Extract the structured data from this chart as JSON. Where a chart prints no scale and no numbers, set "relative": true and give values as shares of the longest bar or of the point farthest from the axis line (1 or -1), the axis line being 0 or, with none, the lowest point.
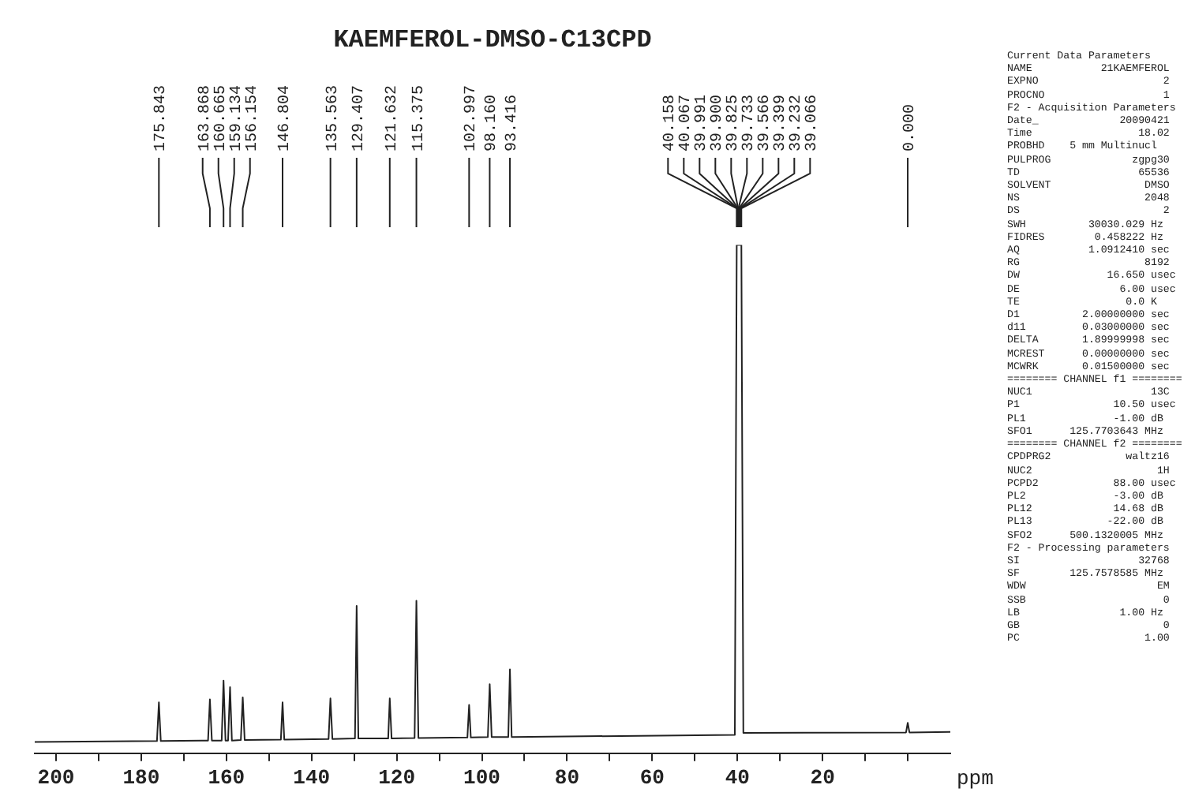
{
  "chart_data": {
    "type": "line",
    "title": "KAEMFEROL-DMSO-C13CPD",
    "xlabel": "ppm",
    "relative": true,
    "color": "#222222",
    "marker": "none",
    "grid": false,
    "legend": false,
    "x": [
      205,
      176.3,
      175.843,
      175.4,
      164.3,
      163.868,
      163.4,
      161.1,
      160.665,
      160.2,
      159.6,
      159.134,
      158.7,
      156.6,
      156.154,
      155.7,
      147.2,
      146.804,
      146.4,
      136.0,
      135.563,
      135.1,
      129.8,
      129.407,
      129.0,
      122.0,
      121.632,
      121.2,
      115.8,
      115.375,
      114.9,
      103.4,
      102.997,
      102.6,
      98.6,
      98.16,
      97.7,
      93.8,
      93.416,
      93.0,
      40.6,
      40.158,
      39.066,
      38.6,
      0.4,
      0,
      -0.4,
      -10
    ],
    "values": [
      0.022,
      0.024,
      0.1,
      0.024,
      0.025,
      0.106,
      0.025,
      0.025,
      0.143,
      0.025,
      0.025,
      0.13,
      0.025,
      0.026,
      0.11,
      0.026,
      0.027,
      0.1,
      0.027,
      0.028,
      0.108,
      0.028,
      0.029,
      0.29,
      0.029,
      0.029,
      0.108,
      0.029,
      0.03,
      0.3,
      0.03,
      0.031,
      0.095,
      0.031,
      0.032,
      0.136,
      0.032,
      0.032,
      0.165,
      0.032,
      0.036,
      1,
      1,
      0.04,
      0.041,
      0.06,
      0.041,
      0.042
    ],
    "xlim": [
      205,
      -10
    ],
    "xticks": [
      200,
      {
        "value": 190,
        "label": null
      },
      180,
      {
        "value": 170,
        "label": null
      },
      160,
      {
        "value": 150,
        "label": null
      },
      140,
      {
        "value": 130,
        "label": null
      },
      120,
      {
        "value": 110,
        "label": null
      },
      100,
      {
        "value": 90,
        "label": null
      },
      80,
      {
        "value": 70,
        "label": null
      },
      60,
      {
        "value": 50,
        "label": null
      },
      40,
      {
        "value": 30,
        "label": null
      },
      20,
      {
        "value": 10,
        "label": null
      },
      {
        "value": 0,
        "label": null
      }
    ],
    "annotations": [
      {
        "text": "175.843",
        "x": 175.843
      },
      {
        "text": "163.868",
        "x": 163.868
      },
      {
        "text": "160.665",
        "x": 160.665
      },
      {
        "text": "159.134",
        "x": 159.134
      },
      {
        "text": "156.154",
        "x": 156.154
      },
      {
        "text": "146.804",
        "x": 146.804
      },
      {
        "text": "135.563",
        "x": 135.563
      },
      {
        "text": "129.407",
        "x": 129.407
      },
      {
        "text": "121.632",
        "x": 121.632
      },
      {
        "text": "115.375",
        "x": 115.375
      },
      {
        "text": "102.997",
        "x": 102.997
      },
      {
        "text": "98.160",
        "x": 98.16
      },
      {
        "text": "93.416",
        "x": 93.416
      },
      {
        "text": "40.158",
        "x": 40.158
      },
      {
        "text": "40.067",
        "x": 40.067
      },
      {
        "text": "39.991",
        "x": 39.991
      },
      {
        "text": "39.900",
        "x": 39.9
      },
      {
        "text": "39.825",
        "x": 39.825
      },
      {
        "text": "39.733",
        "x": 39.733
      },
      {
        "text": "39.566",
        "x": 39.566
      },
      {
        "text": "39.399",
        "x": 39.399
      },
      {
        "text": "39.232",
        "x": 39.232
      },
      {
        "text": "39.066",
        "x": 39.066
      },
      {
        "text": "0.000",
        "x": 0
      },
      "Current Data Parameters",
      "NAME           21KAEMFEROL",
      "EXPNO                    2",
      "PROCNO                   1",
      "F2 - Acquisition Parameters",
      "Date_             20090421",
      "Time                 18.02",
      "PROBHD    5 mm Multinucl",
      "PULPROG             zgpg30",
      "TD                   65536",
      "SOLVENT               DMSO",
      "NS                    2048",
      "DS                       2",
      "SWH          30030.029 Hz",
      "FIDRES        0.458222 Hz",
      "AQ           1.0912410 sec",
      "RG                    8192",
      "DW              16.650 usec",
      "DE                6.00 usec",
      "TE                 0.0 K",
      "D1          2.00000000 sec",
      "d11         0.03000000 sec",
      "DELTA       1.89999998 sec",
      "MCREST      0.00000000 sec",
      "MCWRK       0.01500000 sec",
      "======== CHANNEL f1 ========",
      "NUC1                   13C",
      "P1               10.50 usec",
      "PL1              -1.00 dB",
      "SFO1      125.7703643 MHz",
      "======== CHANNEL f2 ========",
      "CPDPRG2            waltz16",
      "NUC2                    1H",
      "PCPD2            88.00 usec",
      "PL2              -3.00 dB",
      "PL12             14.68 dB",
      "PL13            -22.00 dB",
      "SFO2      500.1320005 MHz",
      "F2 - Processing parameters",
      "SI                   32768",
      "SF        125.7578585 MHz",
      "WDW                     EM",
      "SSB                      0",
      "LB                1.00 Hz",
      "GB                       0",
      "PC                    1.00"
    ]
  }
}
